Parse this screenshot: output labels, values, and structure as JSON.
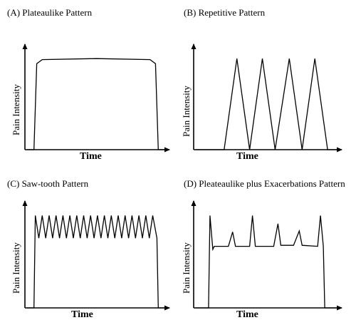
{
  "chart_data": [
    {
      "type": "line",
      "title": "(A) Plateaulike Pattern",
      "xlabel": "Time",
      "ylabel": "Pain Intensity",
      "axis_ticks": false,
      "series": [
        {
          "x": [
            0,
            5,
            7,
            11,
            50,
            89,
            93,
            95,
            100
          ],
          "y": [
            0,
            0,
            85,
            89,
            90,
            89,
            85,
            0,
            0
          ]
        }
      ],
      "xlim": [
        0,
        100
      ],
      "ylim": [
        0,
        100
      ]
    },
    {
      "type": "line",
      "title": "(B) Repetitive Pattern",
      "xlabel": "Time",
      "ylabel": "Pain Intensity",
      "axis_ticks": false,
      "series": [
        {
          "x": [
            0,
            20,
            29,
            38,
            47,
            56,
            66,
            75,
            84,
            93,
            100
          ],
          "y": [
            0,
            0,
            90,
            0,
            90,
            0,
            90,
            0,
            90,
            0,
            0
          ]
        }
      ],
      "xlim": [
        0,
        100
      ],
      "ylim": [
        0,
        100
      ]
    },
    {
      "type": "line",
      "title": "(C) Saw-tooth Pattern",
      "xlabel": "Time",
      "ylabel": "Pain Intensity",
      "axis_ticks": false,
      "series": [
        {
          "x": [
            0,
            5,
            6,
            8.5,
            11,
            13.5,
            16,
            18.5,
            21,
            23.5,
            26,
            28.5,
            31,
            33.5,
            36,
            38.5,
            41,
            43.5,
            46,
            48.5,
            51,
            53.5,
            56,
            58.5,
            61,
            63.5,
            66,
            68.5,
            71,
            73.5,
            76,
            78.5,
            81,
            83.5,
            86,
            88.5,
            91,
            94,
            95,
            100
          ],
          "y": [
            0,
            0,
            90,
            68,
            90,
            68,
            90,
            68,
            90,
            68,
            90,
            68,
            90,
            68,
            90,
            68,
            90,
            68,
            90,
            68,
            90,
            68,
            90,
            68,
            90,
            68,
            90,
            68,
            90,
            68,
            90,
            68,
            90,
            68,
            90,
            68,
            90,
            68,
            0,
            0
          ]
        }
      ],
      "xlim": [
        0,
        100
      ],
      "ylim": [
        0,
        100
      ]
    },
    {
      "type": "line",
      "title": "(D) Pleateaulike plus Exacerbations Pattern",
      "xlabel": "Time",
      "ylabel": "Pain Intensity",
      "axis_ticks": false,
      "series": [
        {
          "x": [
            0,
            9,
            10,
            12,
            13,
            23,
            26,
            28,
            38,
            40,
            42,
            55,
            58,
            60,
            69,
            73,
            75,
            86,
            88,
            90,
            91,
            100
          ],
          "y": [
            0,
            0,
            90,
            57,
            60,
            60,
            74,
            60,
            60,
            90,
            60,
            60,
            82,
            61,
            61,
            75,
            61,
            60,
            90,
            60,
            0,
            0
          ]
        }
      ],
      "xlim": [
        0,
        100
      ],
      "ylim": [
        0,
        100
      ]
    }
  ]
}
